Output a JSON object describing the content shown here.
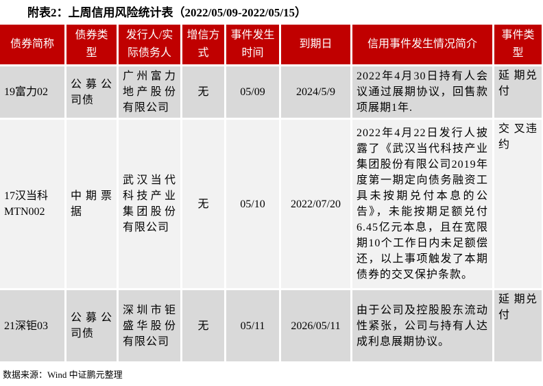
{
  "title": "附表2：上周信用风险统计表（2022/05/09-2022/05/15）",
  "headers": [
    "债券简称",
    "债券类型",
    "发行人/实际债务人",
    "增信方式",
    "事件发生时间",
    "到期日",
    "信用事件发生情况简介",
    "事件类型"
  ],
  "rows": [
    [
      "19富力02",
      "公募公司债",
      "广州富力地产股份有限公司",
      "无",
      "05/09",
      "2024/5/9",
      "2022年4月30日持有人会议通过展期协议，回售款项展期1年.",
      "延 期兑付"
    ],
    [
      "17汉当科MTN002",
      "中期票据",
      "武汉当代科技产业集团股份有限公司",
      "无",
      "05/10",
      "2022/07/20",
      "2022年4月22日发行人披露了《武汉当代科技产业集团股份有限公司2019年度第一期定向债务融资工具未按期兑付本息的公告》，未能按期足额兑付6.45亿元本息，且在宽限期10个工作日内未足额偿还，以上事项触发了本期债券的交叉保护条款。",
      "交 叉违约"
    ],
    [
      "21深钜03",
      "公募公司债",
      "深圳市钜盛华股份有限公司",
      "无",
      "05/11",
      "2026/05/11",
      "由于公司及控股股东流动性紧张，公司与持有人达成利息展期协议。",
      "延 期兑付"
    ]
  ],
  "source": "数据来源：Wind 中证鹏元整理",
  "colors": {
    "header_bg": "#c00000",
    "row_dark": "#d9d9d9",
    "row_light": "#f2f2f2"
  }
}
